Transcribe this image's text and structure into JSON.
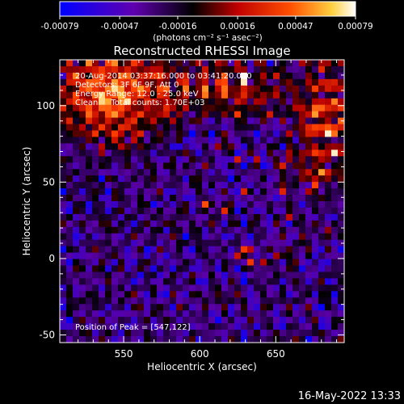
{
  "chart_data": {
    "type": "heatmap",
    "title": "Reconstructed RHESSI Image",
    "xlabel": "Heliocentric X (arcsec)",
    "ylabel": "Heliocentric Y (arcsec)",
    "xlim": [
      508,
      695
    ],
    "ylim": [
      -55,
      130
    ],
    "x_ticks": [
      "550",
      "600",
      "650"
    ],
    "x_tick_values": [
      550,
      600,
      650
    ],
    "y_ticks": [
      "-50",
      "0",
      "50",
      "100"
    ],
    "y_tick_values": [
      -50,
      0,
      50,
      100
    ],
    "colorbar": {
      "range": [
        -0.00079,
        0.00079
      ],
      "tick_labels": [
        "-0.00079",
        "-0.00047",
        "-0.00016",
        "0.00016",
        "0.00047",
        "0.00079"
      ],
      "tick_values": [
        -0.00079,
        -0.00047,
        -0.00016,
        0.00016,
        0.00047,
        0.00079
      ],
      "unit_label": "(photons cm⁻² s⁻¹ asec⁻²)"
    },
    "annotations": [
      "20-Aug-2014 03:37:16.000 to 03:41:20.000",
      "Detectors: 3F 6F 9F, Att 0",
      "Energy Range: 12.0 - 25.0 keV",
      "Clean     Total counts: 1.70E+03"
    ],
    "peak_label": "Position of Peak = [547,122]",
    "peak_position": [
      547,
      122
    ],
    "colormap": [
      "#0000ff",
      "#5a00a8",
      "#000000",
      "#b40000",
      "#ff4000",
      "#ffc040",
      "#ffffff"
    ]
  },
  "footer": {
    "timestamp": "16-May-2022 13:33"
  }
}
